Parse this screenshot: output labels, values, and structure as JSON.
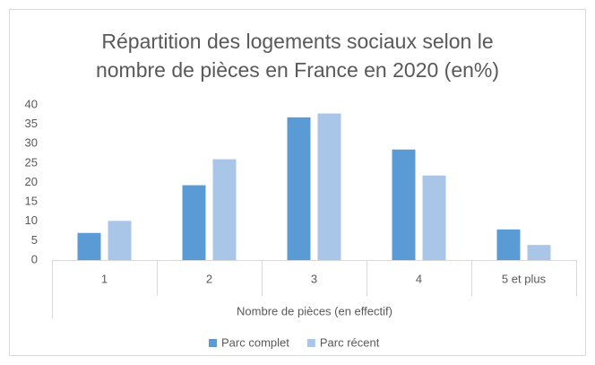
{
  "chart_data": {
    "type": "bar",
    "title": "Répartition des logements sociaux selon le nombre de pièces en France en 2020 (en%)",
    "x_label": "Nombre de pièces (en effectif)",
    "categories": [
      "1",
      "2",
      "3",
      "4",
      "5 et plus"
    ],
    "series": [
      {
        "name": "Parc complet",
        "color": "#5b9bd5",
        "values": [
          7,
          19.3,
          36.8,
          28.5,
          7.9
        ]
      },
      {
        "name": "Parc récent",
        "color": "#a9c6e8",
        "values": [
          10.1,
          26,
          37.8,
          21.8,
          3.9
        ]
      }
    ],
    "ylim": [
      0,
      40
    ],
    "yticks": [
      0,
      5,
      10,
      15,
      20,
      25,
      30,
      35,
      40
    ],
    "grid": false,
    "legend": "bottom"
  }
}
